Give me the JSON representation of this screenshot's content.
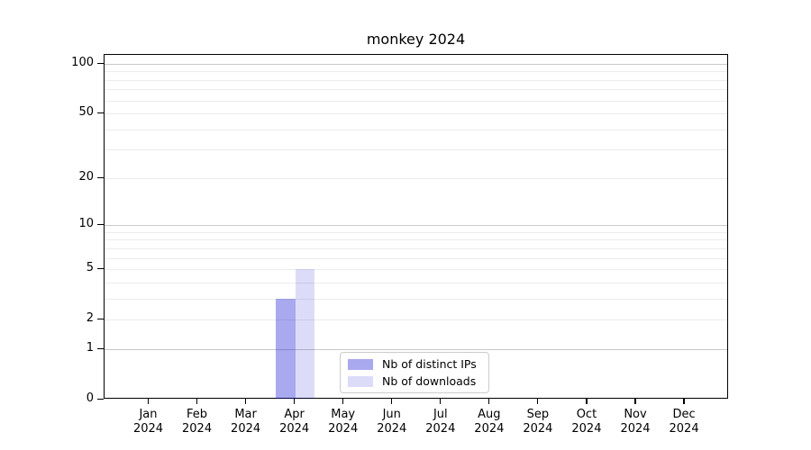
{
  "chart_data": {
    "type": "bar",
    "title": "monkey 2024",
    "xlabel": "",
    "ylabel": "",
    "yscale": "log1p",
    "ylim": [
      0,
      100
    ],
    "yticks": [
      0,
      1,
      2,
      5,
      10,
      20,
      50,
      100
    ],
    "grid": "horizontal",
    "legend_position": "inside-bottom-center",
    "categories": [
      {
        "month": "Jan",
        "year": "2024"
      },
      {
        "month": "Feb",
        "year": "2024"
      },
      {
        "month": "Mar",
        "year": "2024"
      },
      {
        "month": "Apr",
        "year": "2024"
      },
      {
        "month": "May",
        "year": "2024"
      },
      {
        "month": "Jun",
        "year": "2024"
      },
      {
        "month": "Jul",
        "year": "2024"
      },
      {
        "month": "Aug",
        "year": "2024"
      },
      {
        "month": "Sep",
        "year": "2024"
      },
      {
        "month": "Oct",
        "year": "2024"
      },
      {
        "month": "Nov",
        "year": "2024"
      },
      {
        "month": "Dec",
        "year": "2024"
      }
    ],
    "series": [
      {
        "name": "Nb of distinct IPs",
        "values": [
          0,
          0,
          0,
          3,
          0,
          0,
          0,
          0,
          0,
          0,
          0,
          0
        ]
      },
      {
        "name": "Nb of downloads",
        "values": [
          0,
          0,
          0,
          5,
          0,
          0,
          0,
          0,
          0,
          0,
          0,
          0
        ]
      }
    ]
  },
  "colors": {
    "bar_distinct_ips": "rgba(10,10,210,0.35)",
    "bar_downloads": "rgba(10,10,210,0.14)",
    "grid_major": "#c9c9c9",
    "grid_minor": "#ececec",
    "axis": "#000000",
    "legend_border": "#cccccc"
  }
}
